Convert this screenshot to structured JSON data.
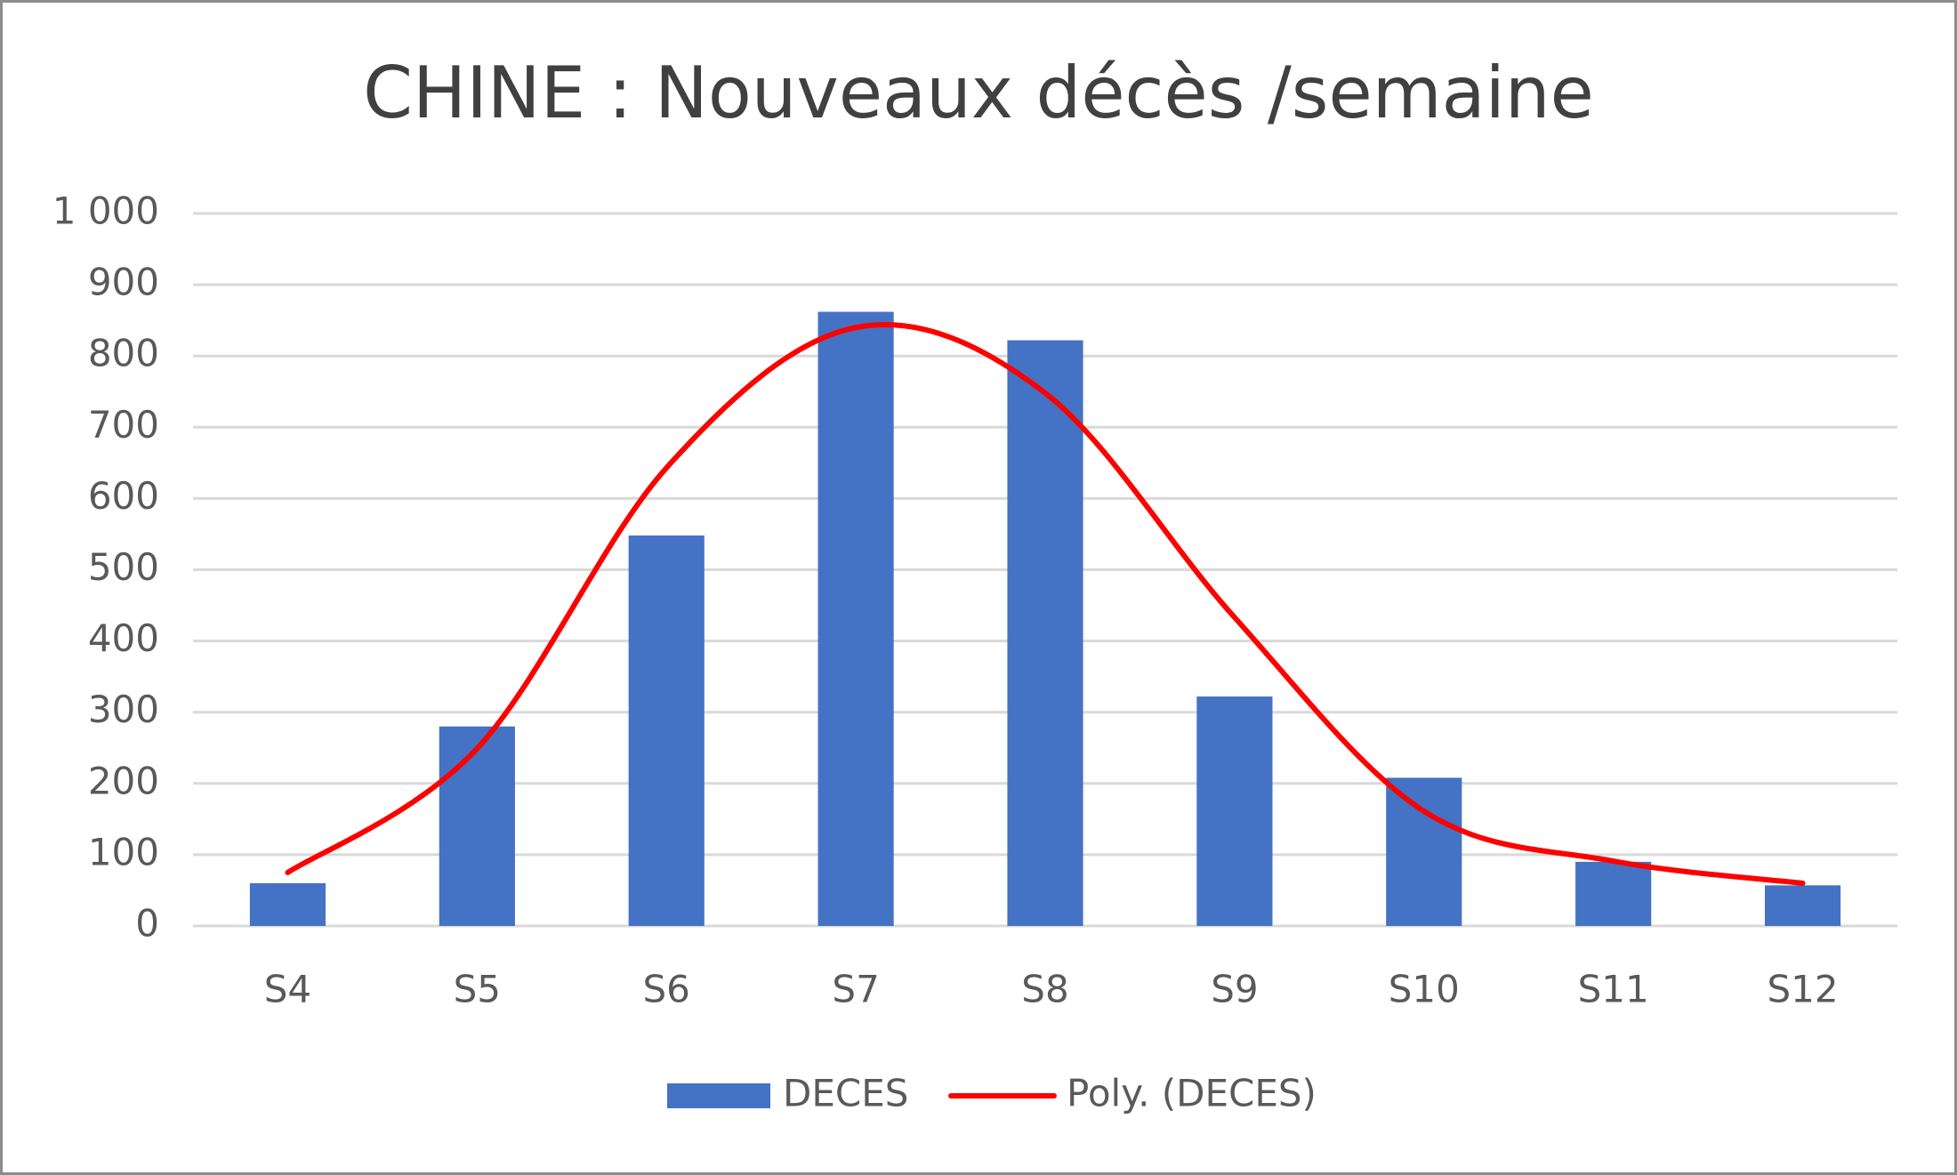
{
  "chart_data": {
    "type": "bar",
    "title": "CHINE : Nouveaux décès /semaine",
    "categories": [
      "S4",
      "S5",
      "S6",
      "S7",
      "S8",
      "S9",
      "S10",
      "S11",
      "S12"
    ],
    "series": [
      {
        "name": "DECES",
        "type": "bar",
        "color": "#4472c4",
        "values": [
          60,
          280,
          548,
          862,
          822,
          322,
          208,
          90,
          57
        ]
      },
      {
        "name": "Poly. (DECES)",
        "type": "line",
        "color": "#ff0000",
        "values": [
          75,
          249,
          643,
          840,
          748,
          433,
          161,
          91,
          60
        ]
      }
    ],
    "ylim": [
      0,
      1000
    ],
    "yticks": [
      0,
      100,
      200,
      300,
      400,
      500,
      600,
      700,
      800,
      900,
      {
        "value": 1000,
        "label": "1 000"
      }
    ],
    "grid": true,
    "legend": "bottom"
  }
}
